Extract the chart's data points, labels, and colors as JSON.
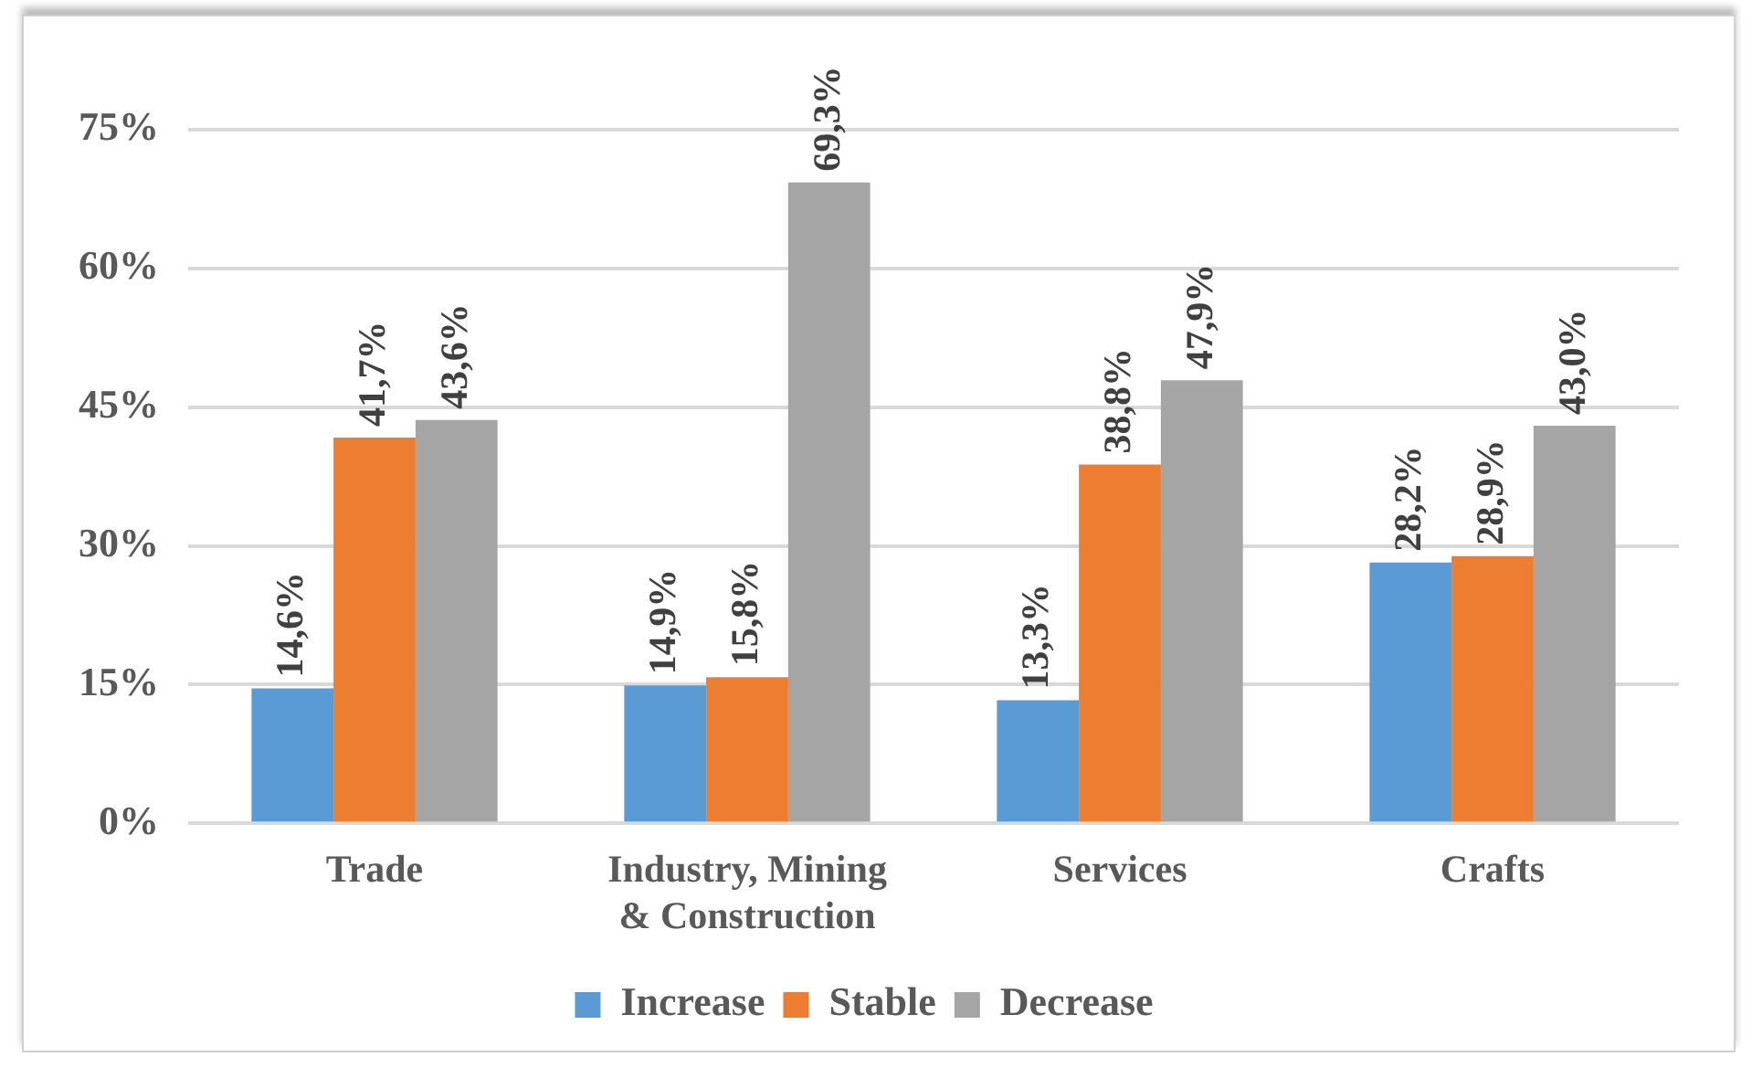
{
  "chart_data": {
    "type": "bar",
    "categories": [
      "Trade",
      "Industry, Mining & Construction",
      "Services",
      "Crafts"
    ],
    "series": [
      {
        "name": "Increase",
        "color": "#5b9bd5",
        "values": [
          14.6,
          14.9,
          13.3,
          28.2
        ],
        "value_labels": [
          "14,6%",
          "14,9%",
          "13,3%",
          "28,2%"
        ]
      },
      {
        "name": "Stable",
        "color": "#ed7d31",
        "values": [
          41.7,
          15.8,
          38.8,
          28.9
        ],
        "value_labels": [
          "41,7%",
          "15,8%",
          "38,8%",
          "28,9%"
        ]
      },
      {
        "name": "Decrease",
        "color": "#a5a5a5",
        "values": [
          43.6,
          69.3,
          47.9,
          43.0
        ],
        "value_labels": [
          "43,6%",
          "69,3%",
          "47,9%",
          "43,0%"
        ]
      }
    ],
    "ylim": [
      0,
      75
    ],
    "yticks": [
      {
        "value": 0,
        "label": "0%"
      },
      {
        "value": 15,
        "label": "15%"
      },
      {
        "value": 30,
        "label": "30%"
      },
      {
        "value": 45,
        "label": "45%"
      },
      {
        "value": 60,
        "label": "60%"
      },
      {
        "value": 75,
        "label": "75%"
      }
    ],
    "grid": "y",
    "legend": "bottom"
  }
}
